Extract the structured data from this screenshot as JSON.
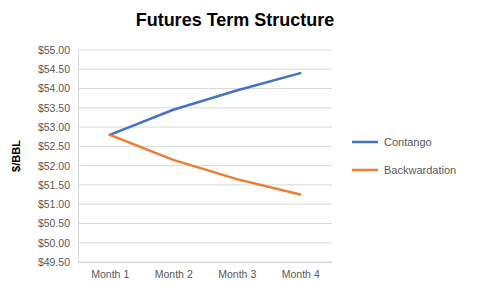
{
  "chart_data": {
    "type": "line",
    "title": "Futures Term Structure",
    "y_label": "$/BBL",
    "categories": [
      "Month 1",
      "Month 2",
      "Month 3",
      "Month 4"
    ],
    "series": [
      {
        "name": "Contango",
        "color": "#4472c4",
        "values": [
          52.8,
          53.45,
          53.95,
          54.4
        ]
      },
      {
        "name": "Backwardation",
        "color": "#ed7d31",
        "values": [
          52.8,
          52.15,
          51.65,
          51.25
        ]
      }
    ],
    "ylim": [
      49.5,
      55
    ],
    "yticks": [
      {
        "value": 49.5,
        "label": "$49.50"
      },
      {
        "value": 50,
        "label": "$50.00"
      },
      {
        "value": 50.5,
        "label": "$50.50"
      },
      {
        "value": 51,
        "label": "$51.00"
      },
      {
        "value": 51.5,
        "label": "$51.50"
      },
      {
        "value": 52,
        "label": "$52.00"
      },
      {
        "value": 52.5,
        "label": "$52.50"
      },
      {
        "value": 53,
        "label": "$53.00"
      },
      {
        "value": 53.5,
        "label": "$53.50"
      },
      {
        "value": 54,
        "label": "$54.00"
      },
      {
        "value": 54.5,
        "label": "$54.50"
      },
      {
        "value": 55,
        "label": "$55.00"
      }
    ],
    "grid": true,
    "legend": "right"
  }
}
